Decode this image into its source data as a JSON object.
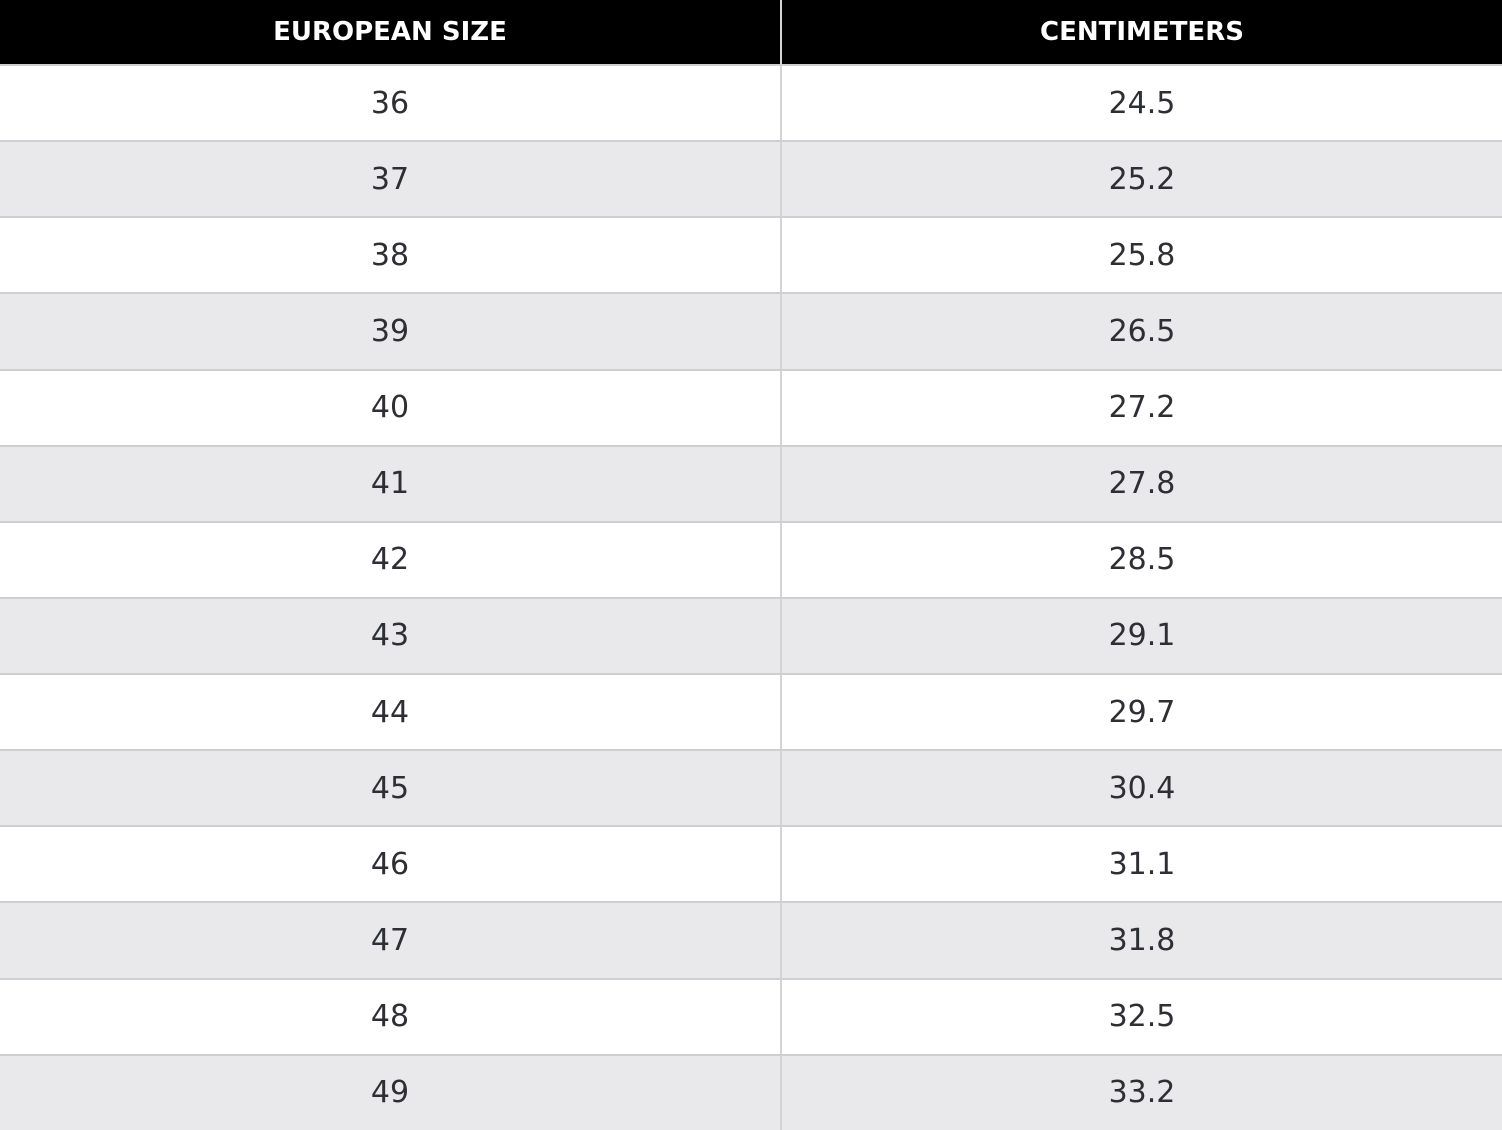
{
  "table": {
    "header": [
      "EUROPEAN SIZE",
      "CENTIMETERS"
    ],
    "rows": [
      [
        36,
        24.5
      ],
      [
        37,
        25.2
      ],
      [
        38,
        25.8
      ],
      [
        39,
        26.5
      ],
      [
        40,
        27.2
      ],
      [
        41,
        27.8
      ],
      [
        42,
        28.5
      ],
      [
        43,
        29.1
      ],
      [
        44,
        29.7
      ],
      [
        45,
        30.4
      ],
      [
        46,
        31.1
      ],
      [
        47,
        31.8
      ],
      [
        48,
        32.5
      ],
      [
        49,
        33.2
      ]
    ]
  }
}
